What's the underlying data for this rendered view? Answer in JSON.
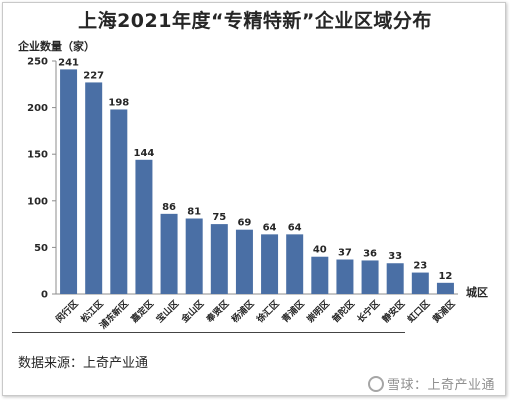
{
  "chart_data": {
    "type": "bar",
    "title": "上海2021年度“专精特新”企业区域分布",
    "ylabel": "企业数量（家）",
    "xlabel": "城区",
    "ylim": [
      0,
      250
    ],
    "yticks": [
      0,
      50,
      100,
      150,
      200,
      250
    ],
    "categories": [
      "闵行区",
      "松江区",
      "浦东新区",
      "嘉定区",
      "宝山区",
      "金山区",
      "奉贤区",
      "杨浦区",
      "徐汇区",
      "青浦区",
      "崇明区",
      "普陀区",
      "长宁区",
      "静安区",
      "虹口区",
      "黄浦区"
    ],
    "values": [
      241,
      227,
      198,
      144,
      86,
      81,
      75,
      69,
      64,
      64,
      40,
      37,
      36,
      33,
      23,
      12
    ],
    "bar_color": "#4a6fa5",
    "grid": false,
    "legend": "none"
  },
  "footer": {
    "source": "数据来源：上奇产业通"
  },
  "watermark": {
    "text": "雪球：上奇产业通"
  }
}
